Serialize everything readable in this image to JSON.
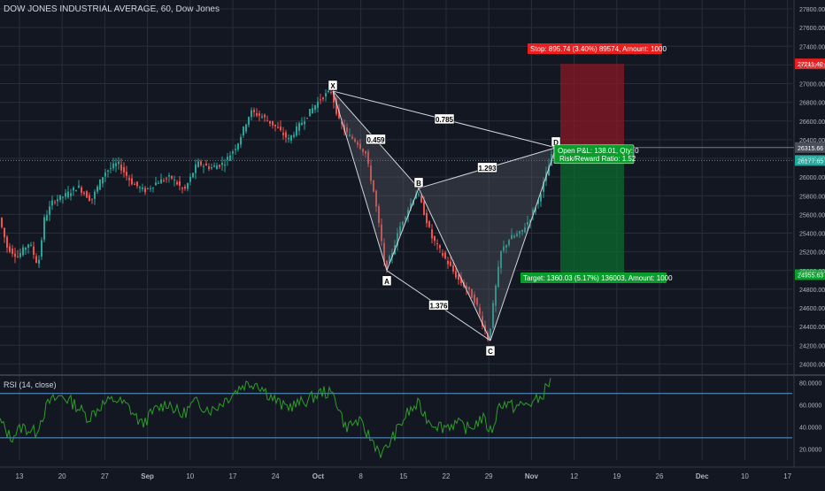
{
  "header": {
    "title": "DOW JONES INDUSTRIAL AVERAGE, 60, Dow Jones"
  },
  "colors": {
    "background": "#131722",
    "grid": "#2a2e39",
    "bull": "#26a69a",
    "bear": "#ef5350",
    "pattern_fill": "#5d606b",
    "pattern_line": "#d1d4dc",
    "stop_zone": "#8b1a25",
    "target_zone": "#0b6b2e",
    "rsi_line": "#2e9e28",
    "rsi_band": "#5b9bd5"
  },
  "chart_data": [
    {
      "type": "candlestick",
      "title": "DOW JONES INDUSTRIAL AVERAGE, 60, Dow Jones",
      "ylim": [
        23900,
        27800
      ],
      "y_ticks": [
        24000,
        24200,
        24400,
        24600,
        24800,
        25000,
        25200,
        25400,
        25600,
        25800,
        26000,
        26200,
        26400,
        26600,
        26800,
        27000,
        27200,
        27400,
        27600,
        27800
      ],
      "y_tick_labels": [
        "24000.00",
        "24200.00",
        "24400.00",
        "24600.00",
        "24800.00",
        "25000.00",
        "25200.00",
        "25400.00",
        "25600.00",
        "25800.00",
        "26000.00",
        "26200.00",
        "26400.00",
        "26600.00",
        "26800.00",
        "27000.00",
        "27200.00",
        "27400.00",
        "27600.00",
        "27800.00"
      ],
      "x_ticks": [
        "13",
        "20",
        "27",
        "Sep",
        "10",
        "17",
        "24",
        "Oct",
        "8",
        "15",
        "22",
        "29",
        "Nov",
        "12",
        "19",
        "26",
        "Dec",
        "10",
        "17"
      ],
      "price_path": [
        {
          "x": 0,
          "y": 25600
        },
        {
          "x": 10,
          "y": 25250
        },
        {
          "x": 22,
          "y": 25150
        },
        {
          "x": 35,
          "y": 25300
        },
        {
          "x": 45,
          "y": 25050
        },
        {
          "x": 52,
          "y": 25550
        },
        {
          "x": 62,
          "y": 25750
        },
        {
          "x": 75,
          "y": 25800
        },
        {
          "x": 90,
          "y": 25900
        },
        {
          "x": 105,
          "y": 25750
        },
        {
          "x": 120,
          "y": 26050
        },
        {
          "x": 135,
          "y": 26150
        },
        {
          "x": 150,
          "y": 25950
        },
        {
          "x": 165,
          "y": 25850
        },
        {
          "x": 180,
          "y": 25950
        },
        {
          "x": 195,
          "y": 26000
        },
        {
          "x": 210,
          "y": 25850
        },
        {
          "x": 225,
          "y": 26150
        },
        {
          "x": 240,
          "y": 26100
        },
        {
          "x": 255,
          "y": 26150
        },
        {
          "x": 270,
          "y": 26350
        },
        {
          "x": 285,
          "y": 26700
        },
        {
          "x": 298,
          "y": 26650
        },
        {
          "x": 312,
          "y": 26550
        },
        {
          "x": 328,
          "y": 26400
        },
        {
          "x": 340,
          "y": 26550
        },
        {
          "x": 352,
          "y": 26700
        },
        {
          "x": 365,
          "y": 26850
        },
        {
          "x": 376,
          "y": 26920
        },
        {
          "x": 385,
          "y": 26600
        },
        {
          "x": 395,
          "y": 26450
        },
        {
          "x": 405,
          "y": 26380
        },
        {
          "x": 415,
          "y": 26250
        },
        {
          "x": 425,
          "y": 25800
        },
        {
          "x": 433,
          "y": 25300
        },
        {
          "x": 437,
          "y": 25000
        },
        {
          "x": 445,
          "y": 25200
        },
        {
          "x": 455,
          "y": 25500
        },
        {
          "x": 465,
          "y": 25700
        },
        {
          "x": 473,
          "y": 25850
        },
        {
          "x": 480,
          "y": 25650
        },
        {
          "x": 490,
          "y": 25350
        },
        {
          "x": 500,
          "y": 25200
        },
        {
          "x": 510,
          "y": 25050
        },
        {
          "x": 520,
          "y": 24900
        },
        {
          "x": 530,
          "y": 24800
        },
        {
          "x": 540,
          "y": 24650
        },
        {
          "x": 548,
          "y": 24400
        },
        {
          "x": 554,
          "y": 24250
        },
        {
          "x": 560,
          "y": 24700
        },
        {
          "x": 568,
          "y": 25200
        },
        {
          "x": 578,
          "y": 25350
        },
        {
          "x": 590,
          "y": 25400
        },
        {
          "x": 600,
          "y": 25550
        },
        {
          "x": 610,
          "y": 25750
        },
        {
          "x": 618,
          "y": 26000
        },
        {
          "x": 628,
          "y": 26315
        }
      ],
      "pattern": {
        "points": [
          {
            "label": "X",
            "x": 376,
            "y": 26920
          },
          {
            "label": "A",
            "x": 437,
            "y": 25000
          },
          {
            "label": "B",
            "x": 473,
            "y": 25880
          },
          {
            "label": "C",
            "x": 554,
            "y": 24250
          },
          {
            "label": "D",
            "x": 628,
            "y": 26315
          }
        ],
        "ratios": [
          {
            "label": "0.785",
            "between": [
              "X",
              "D"
            ]
          },
          {
            "label": "0.459",
            "between": [
              "X",
              "B"
            ]
          },
          {
            "label": "1.293",
            "between": [
              "B",
              "D"
            ]
          },
          {
            "label": "1.376",
            "between": [
              "A",
              "C"
            ]
          }
        ]
      },
      "position": {
        "entry": 26315.66,
        "stop": 27211.4,
        "target": 24955.63,
        "current": 26177.65,
        "stop_label": "Stop: 895.74 (3.40%) 89574, Amount: 1000",
        "target_label": "Target: 1360.03 (5.17%) 136003, Amount: 1000",
        "pnl_label": "Open P&L: 138.01, Qty: 0",
        "rr_label": "Risk/Reward Ratio: 1.52",
        "stop_price_label": "27211.40",
        "entry_price_label": "26315.66",
        "current_price_label": "26177.65",
        "target_price_label": "24955.63"
      }
    },
    {
      "type": "line",
      "title": "RSI (14, close)",
      "ylim": [
        10,
        85
      ],
      "y_ticks": [
        20,
        40,
        60,
        80
      ],
      "y_tick_labels": [
        "20.0000",
        "40.0000",
        "60.0000",
        "80.0000"
      ],
      "band": [
        30,
        70
      ],
      "rsi_path": [
        {
          "x": 0,
          "y": 45
        },
        {
          "x": 12,
          "y": 30
        },
        {
          "x": 25,
          "y": 40
        },
        {
          "x": 40,
          "y": 35
        },
        {
          "x": 55,
          "y": 62
        },
        {
          "x": 70,
          "y": 68
        },
        {
          "x": 85,
          "y": 60
        },
        {
          "x": 100,
          "y": 48
        },
        {
          "x": 115,
          "y": 60
        },
        {
          "x": 130,
          "y": 65
        },
        {
          "x": 145,
          "y": 58
        },
        {
          "x": 160,
          "y": 42
        },
        {
          "x": 175,
          "y": 55
        },
        {
          "x": 190,
          "y": 62
        },
        {
          "x": 205,
          "y": 50
        },
        {
          "x": 220,
          "y": 62
        },
        {
          "x": 240,
          "y": 55
        },
        {
          "x": 260,
          "y": 68
        },
        {
          "x": 275,
          "y": 78
        },
        {
          "x": 290,
          "y": 80
        },
        {
          "x": 305,
          "y": 68
        },
        {
          "x": 320,
          "y": 58
        },
        {
          "x": 335,
          "y": 60
        },
        {
          "x": 350,
          "y": 65
        },
        {
          "x": 365,
          "y": 72
        },
        {
          "x": 378,
          "y": 68
        },
        {
          "x": 390,
          "y": 40
        },
        {
          "x": 405,
          "y": 45
        },
        {
          "x": 420,
          "y": 28
        },
        {
          "x": 432,
          "y": 15
        },
        {
          "x": 445,
          "y": 32
        },
        {
          "x": 460,
          "y": 52
        },
        {
          "x": 472,
          "y": 60
        },
        {
          "x": 485,
          "y": 45
        },
        {
          "x": 500,
          "y": 40
        },
        {
          "x": 515,
          "y": 43
        },
        {
          "x": 530,
          "y": 38
        },
        {
          "x": 545,
          "y": 48
        },
        {
          "x": 555,
          "y": 35
        },
        {
          "x": 565,
          "y": 62
        },
        {
          "x": 580,
          "y": 58
        },
        {
          "x": 595,
          "y": 60
        },
        {
          "x": 610,
          "y": 65
        },
        {
          "x": 622,
          "y": 82
        }
      ]
    }
  ]
}
